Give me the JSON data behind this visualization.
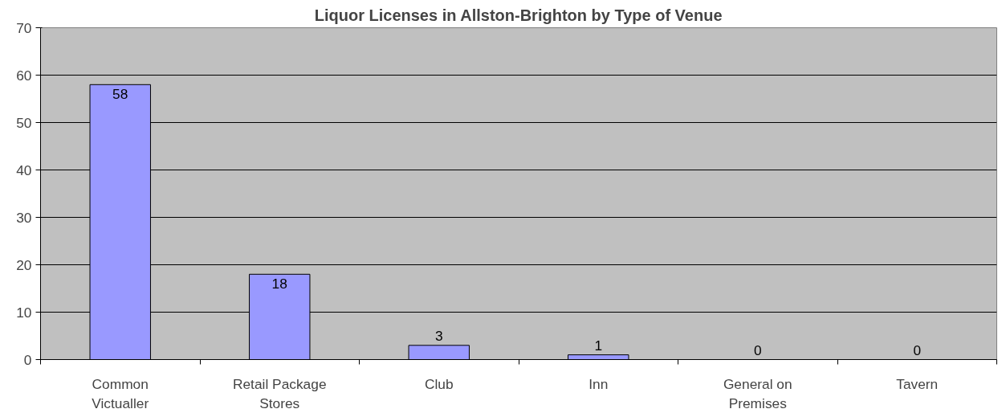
{
  "chart_data": {
    "type": "bar",
    "title": "Liquor Licenses in Allston-Brighton by Type of Venue",
    "categories": [
      "Common\nVictualler",
      "Retail Package\nStores",
      "Club",
      "Inn",
      "General on\nPremises",
      "Tavern"
    ],
    "values": [
      58,
      18,
      3,
      1,
      0,
      0
    ],
    "color": "#9999ff",
    "ylim": [
      0,
      70
    ],
    "yticks": [
      0,
      10,
      20,
      30,
      40,
      50,
      60,
      70
    ],
    "grid": "y",
    "data_labels": true
  }
}
